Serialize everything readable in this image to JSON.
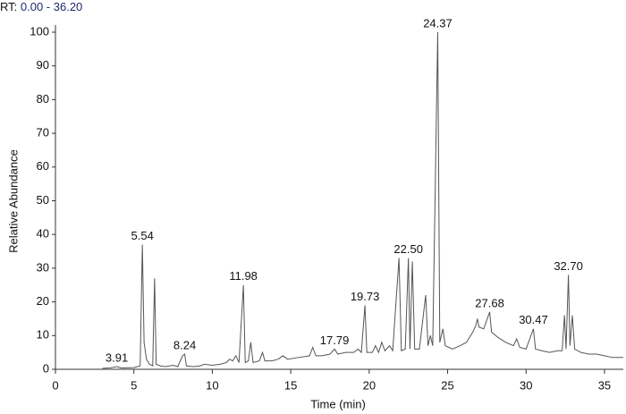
{
  "chart_data": {
    "type": "line",
    "rt_label": "RT:",
    "rt_range": "0.00 - 36.20",
    "xlabel": "Time (min)",
    "ylabel": "Relative Abundance",
    "xlim": [
      0,
      36.2
    ],
    "ylim": [
      0,
      100
    ],
    "xticks": [
      0,
      5,
      10,
      15,
      20,
      25,
      30,
      35
    ],
    "yticks": [
      0,
      10,
      20,
      30,
      40,
      50,
      60,
      70,
      80,
      90,
      100
    ],
    "color": "#555555",
    "x": [
      3.0,
      3.5,
      3.91,
      4.2,
      5.0,
      5.4,
      5.54,
      5.65,
      5.8,
      6.0,
      6.2,
      6.32,
      6.42,
      6.7,
      7.0,
      7.5,
      7.8,
      8.1,
      8.24,
      8.35,
      8.8,
      9.2,
      9.5,
      10.0,
      10.5,
      10.9,
      11.1,
      11.3,
      11.5,
      11.7,
      11.98,
      12.1,
      12.3,
      12.45,
      12.6,
      13.0,
      13.2,
      13.35,
      13.8,
      14.2,
      14.5,
      14.8,
      15.5,
      16.2,
      16.4,
      16.6,
      17.0,
      17.5,
      17.79,
      18.0,
      18.5,
      19.0,
      19.3,
      19.5,
      19.73,
      19.85,
      20.2,
      20.4,
      20.6,
      20.8,
      21.0,
      21.3,
      21.5,
      21.9,
      22.05,
      22.3,
      22.5,
      22.6,
      22.75,
      22.9,
      23.2,
      23.6,
      23.75,
      23.9,
      24.05,
      24.37,
      24.5,
      24.7,
      24.85,
      25.3,
      25.8,
      26.2,
      26.6,
      26.8,
      26.9,
      27.0,
      27.3,
      27.68,
      27.8,
      28.2,
      28.7,
      29.2,
      29.4,
      29.6,
      30.0,
      30.47,
      30.6,
      31.0,
      31.5,
      32.0,
      32.3,
      32.45,
      32.55,
      32.7,
      32.8,
      32.95,
      33.1,
      33.5,
      34.0,
      34.5,
      35.0,
      35.5,
      36.2
    ],
    "values": [
      0.3,
      0.4,
      0.8,
      0.4,
      0.5,
      1,
      37,
      8,
      3,
      1.5,
      1,
      27,
      1.5,
      1,
      0.8,
      1.2,
      0.8,
      4,
      4.5,
      1,
      0.8,
      1,
      1.5,
      1.2,
      1.5,
      2,
      3,
      2.5,
      4,
      2,
      25,
      2,
      2.5,
      8,
      2,
      2.5,
      5,
      2.5,
      2.5,
      3,
      4,
      3,
      3.5,
      4,
      6.5,
      4,
      4,
      4.5,
      6,
      4.5,
      5,
      5,
      6,
      5,
      19,
      5,
      5,
      7,
      5,
      8,
      5.5,
      7,
      5.5,
      33,
      5.5,
      6,
      33,
      6,
      32,
      6,
      6,
      22,
      7,
      10,
      7,
      100,
      8,
      12,
      7,
      6,
      7,
      8,
      11,
      13,
      15,
      12.5,
      12,
      17,
      11,
      9.5,
      8,
      7,
      9,
      6.5,
      6,
      12,
      6,
      5.5,
      5,
      5.5,
      5.5,
      16,
      6,
      28,
      7,
      16,
      6,
      5,
      4.5,
      4.5,
      4,
      3.5,
      3.5
    ],
    "annotations": [
      {
        "text": "3.91",
        "x": 3.91,
        "y": 0.8
      },
      {
        "text": "5.54",
        "x": 5.54,
        "y": 37
      },
      {
        "text": "8.24",
        "x": 8.24,
        "y": 4.5
      },
      {
        "text": "11.98",
        "x": 11.98,
        "y": 25
      },
      {
        "text": "17.79",
        "x": 17.79,
        "y": 6
      },
      {
        "text": "19.73",
        "x": 19.73,
        "y": 19
      },
      {
        "text": "22.50",
        "x": 22.5,
        "y": 33
      },
      {
        "text": "24.37",
        "x": 24.37,
        "y": 100
      },
      {
        "text": "27.68",
        "x": 27.68,
        "y": 17
      },
      {
        "text": "30.47",
        "x": 30.47,
        "y": 12
      },
      {
        "text": "32.70",
        "x": 32.7,
        "y": 28
      }
    ]
  }
}
